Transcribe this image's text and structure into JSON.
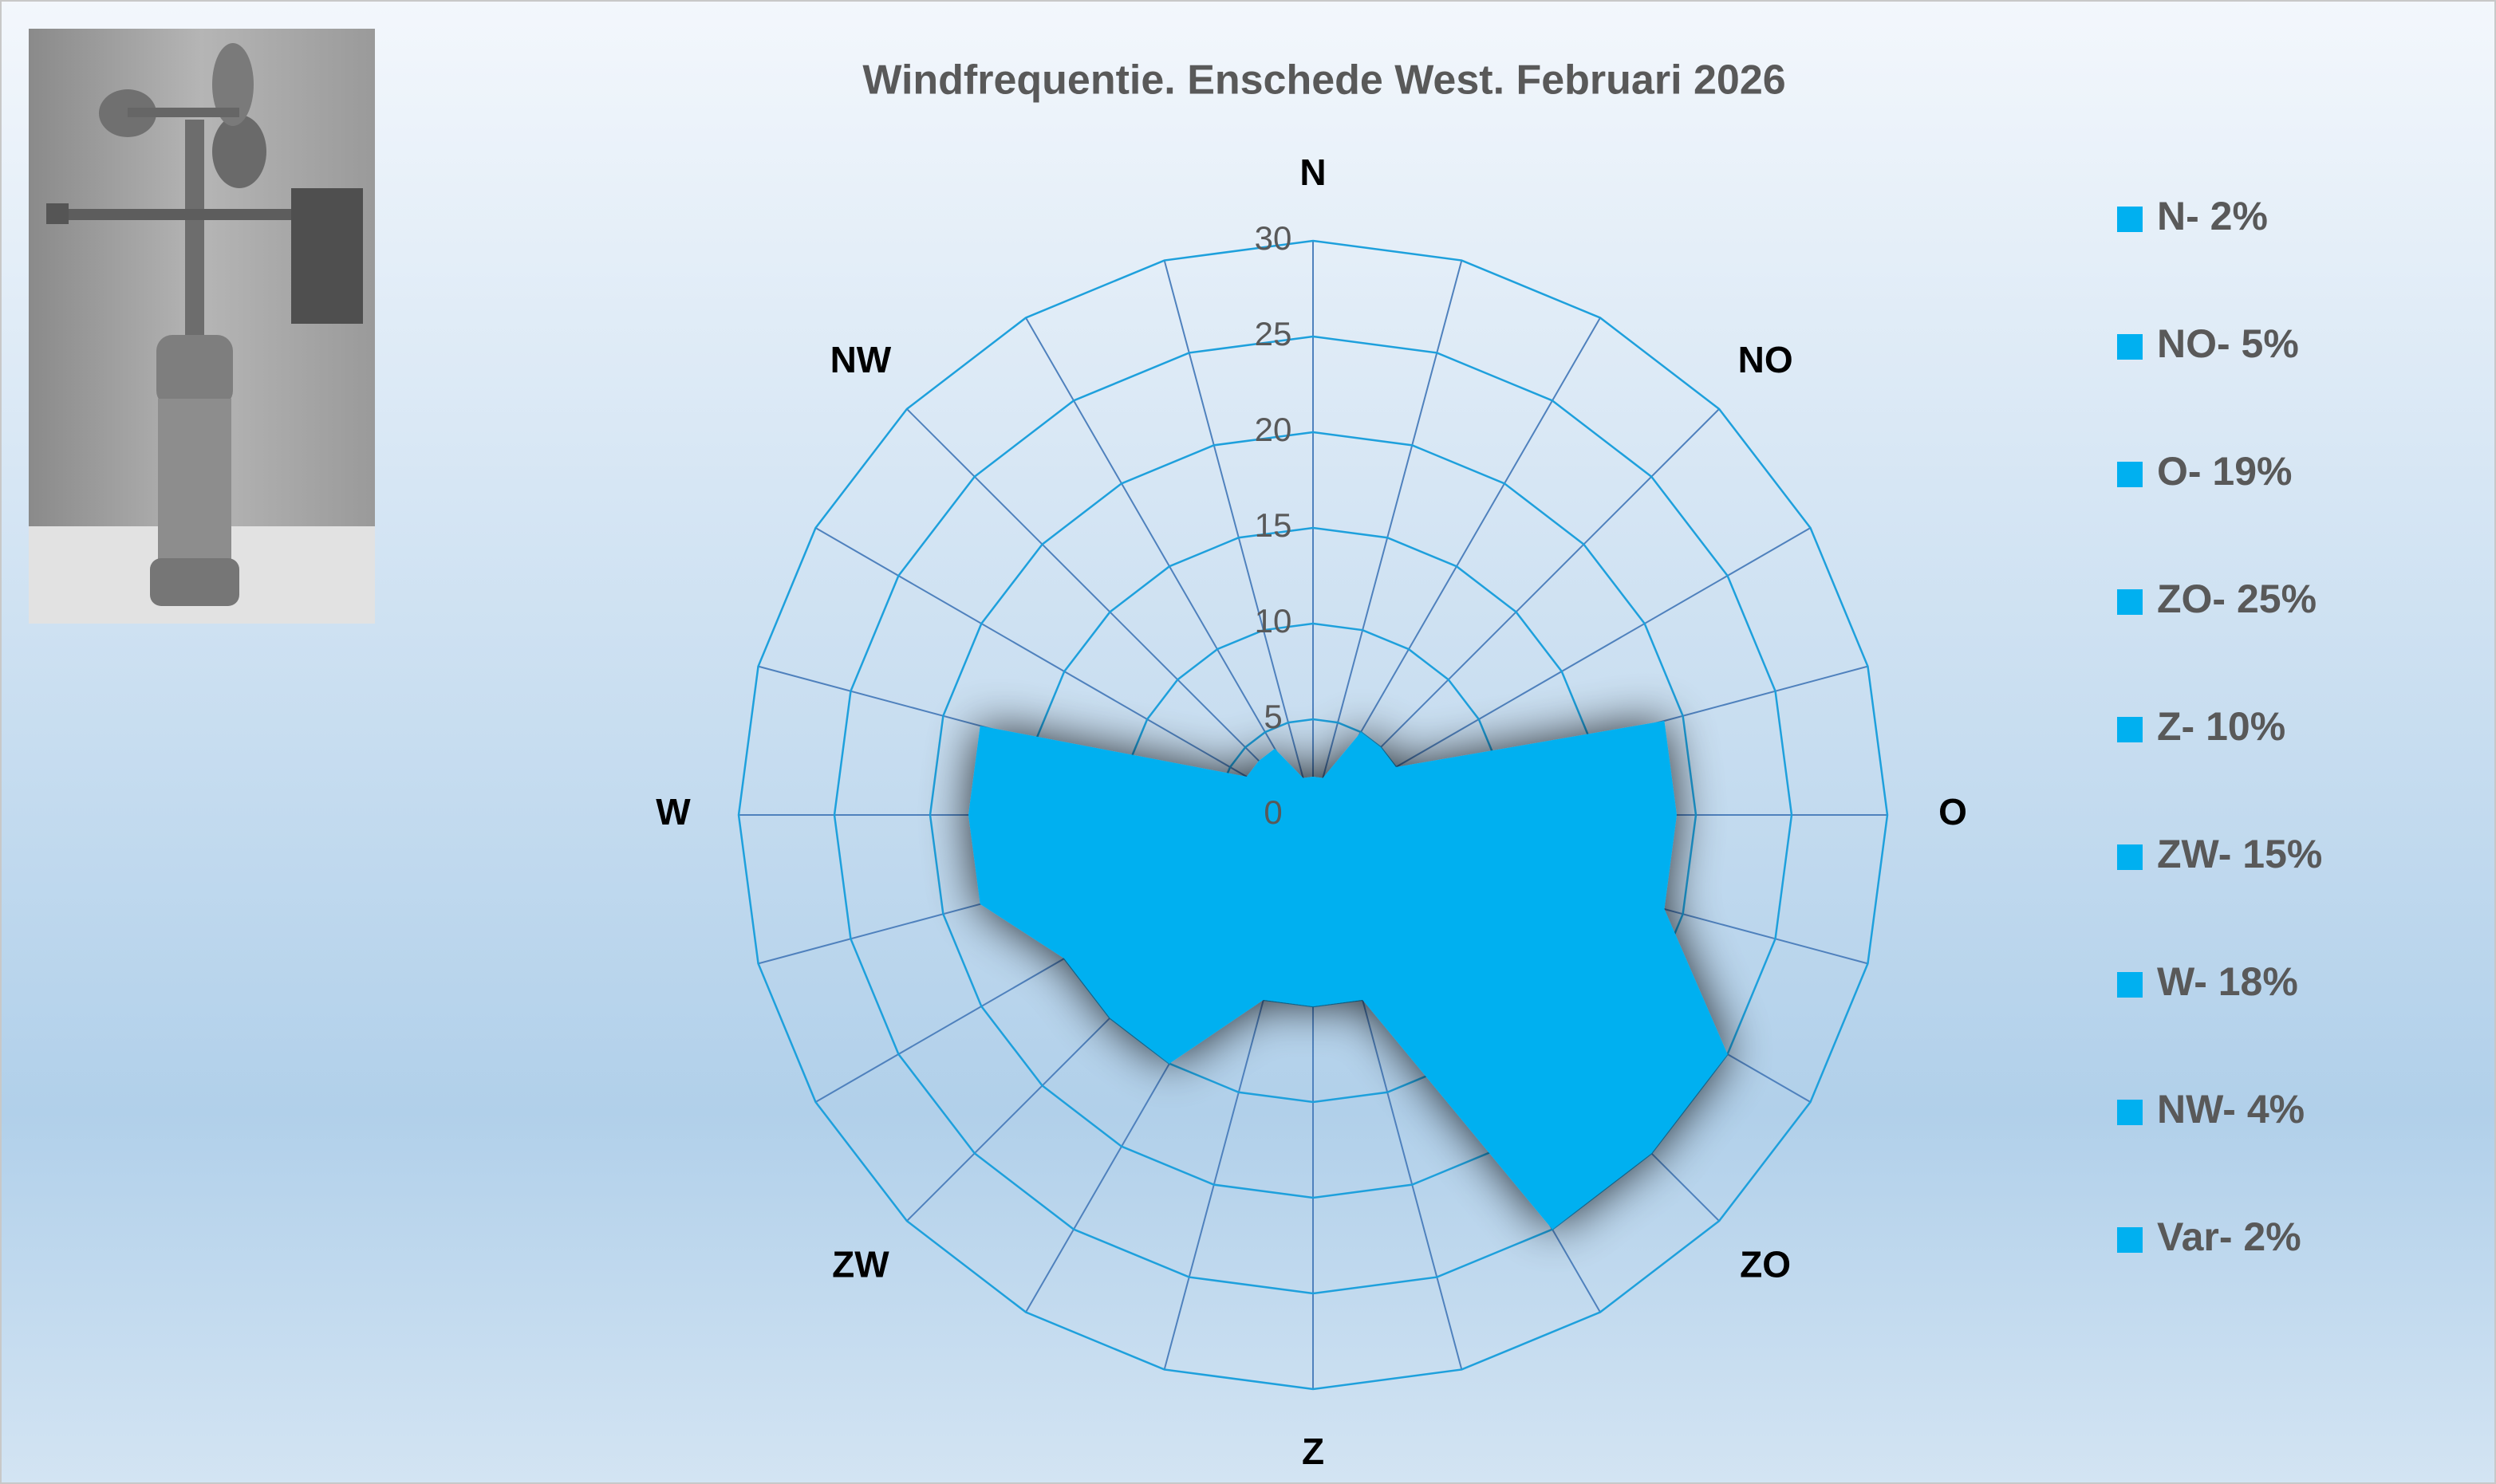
{
  "chart_data": {
    "type": "radar",
    "title": "Windfrequentie. Enschede West. Februari 2026",
    "categories": [
      "N",
      null,
      null,
      "NO",
      null,
      null,
      "O",
      null,
      null,
      "ZO",
      null,
      null,
      "Z",
      null,
      null,
      "ZW",
      null,
      null,
      "W",
      null,
      null,
      "NW",
      null,
      null
    ],
    "series": [
      {
        "color": "#00b0f0",
        "values": [
          2,
          2,
          5,
          5,
          5,
          19,
          19,
          19,
          25,
          25,
          25,
          10,
          10,
          10,
          15,
          15,
          15,
          18,
          18,
          18,
          4,
          4,
          4,
          2
        ]
      }
    ],
    "rlim": [
      0,
      30
    ],
    "rticks": [
      0,
      5,
      10,
      15,
      20,
      25,
      30
    ],
    "grid": true,
    "legend": {
      "color": "#00b0f0",
      "position": "right",
      "labels": [
        "N- 2%",
        "NO- 5%",
        "O- 19%",
        "ZO- 25%",
        "Z- 10%",
        "ZW- 15%",
        "W- 18%",
        "NW- 4%",
        "Var- 2%"
      ]
    }
  }
}
